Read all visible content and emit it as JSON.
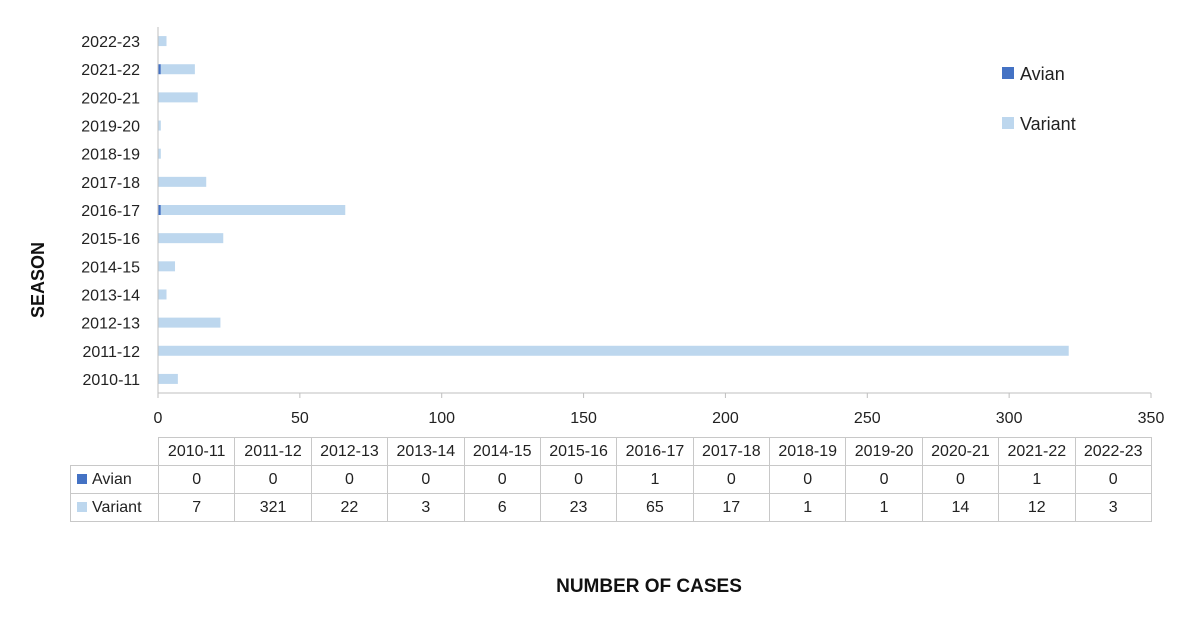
{
  "chart_data": {
    "type": "bar",
    "orientation": "horizontal",
    "stacked": true,
    "categories": [
      "2010-11",
      "2011-12",
      "2012-13",
      "2013-14",
      "2014-15",
      "2015-16",
      "2016-17",
      "2017-18",
      "2018-19",
      "2019-20",
      "2020-21",
      "2021-22",
      "2022-23"
    ],
    "series": [
      {
        "name": "Avian",
        "color": "#4472c4",
        "values": [
          0,
          0,
          0,
          0,
          0,
          0,
          1,
          0,
          0,
          0,
          0,
          1,
          0
        ]
      },
      {
        "name": "Variant",
        "color": "#bdd7ee",
        "values": [
          7,
          321,
          22,
          3,
          6,
          23,
          65,
          17,
          1,
          1,
          14,
          12,
          3
        ]
      }
    ],
    "xlabel": "NUMBER  OF CASES",
    "ylabel": "SEASON",
    "xlim": [
      0,
      350
    ],
    "xticks": [
      0,
      50,
      100,
      150,
      200,
      250,
      300,
      350
    ],
    "grid": false,
    "legend_position": "top-right",
    "data_table": true
  }
}
